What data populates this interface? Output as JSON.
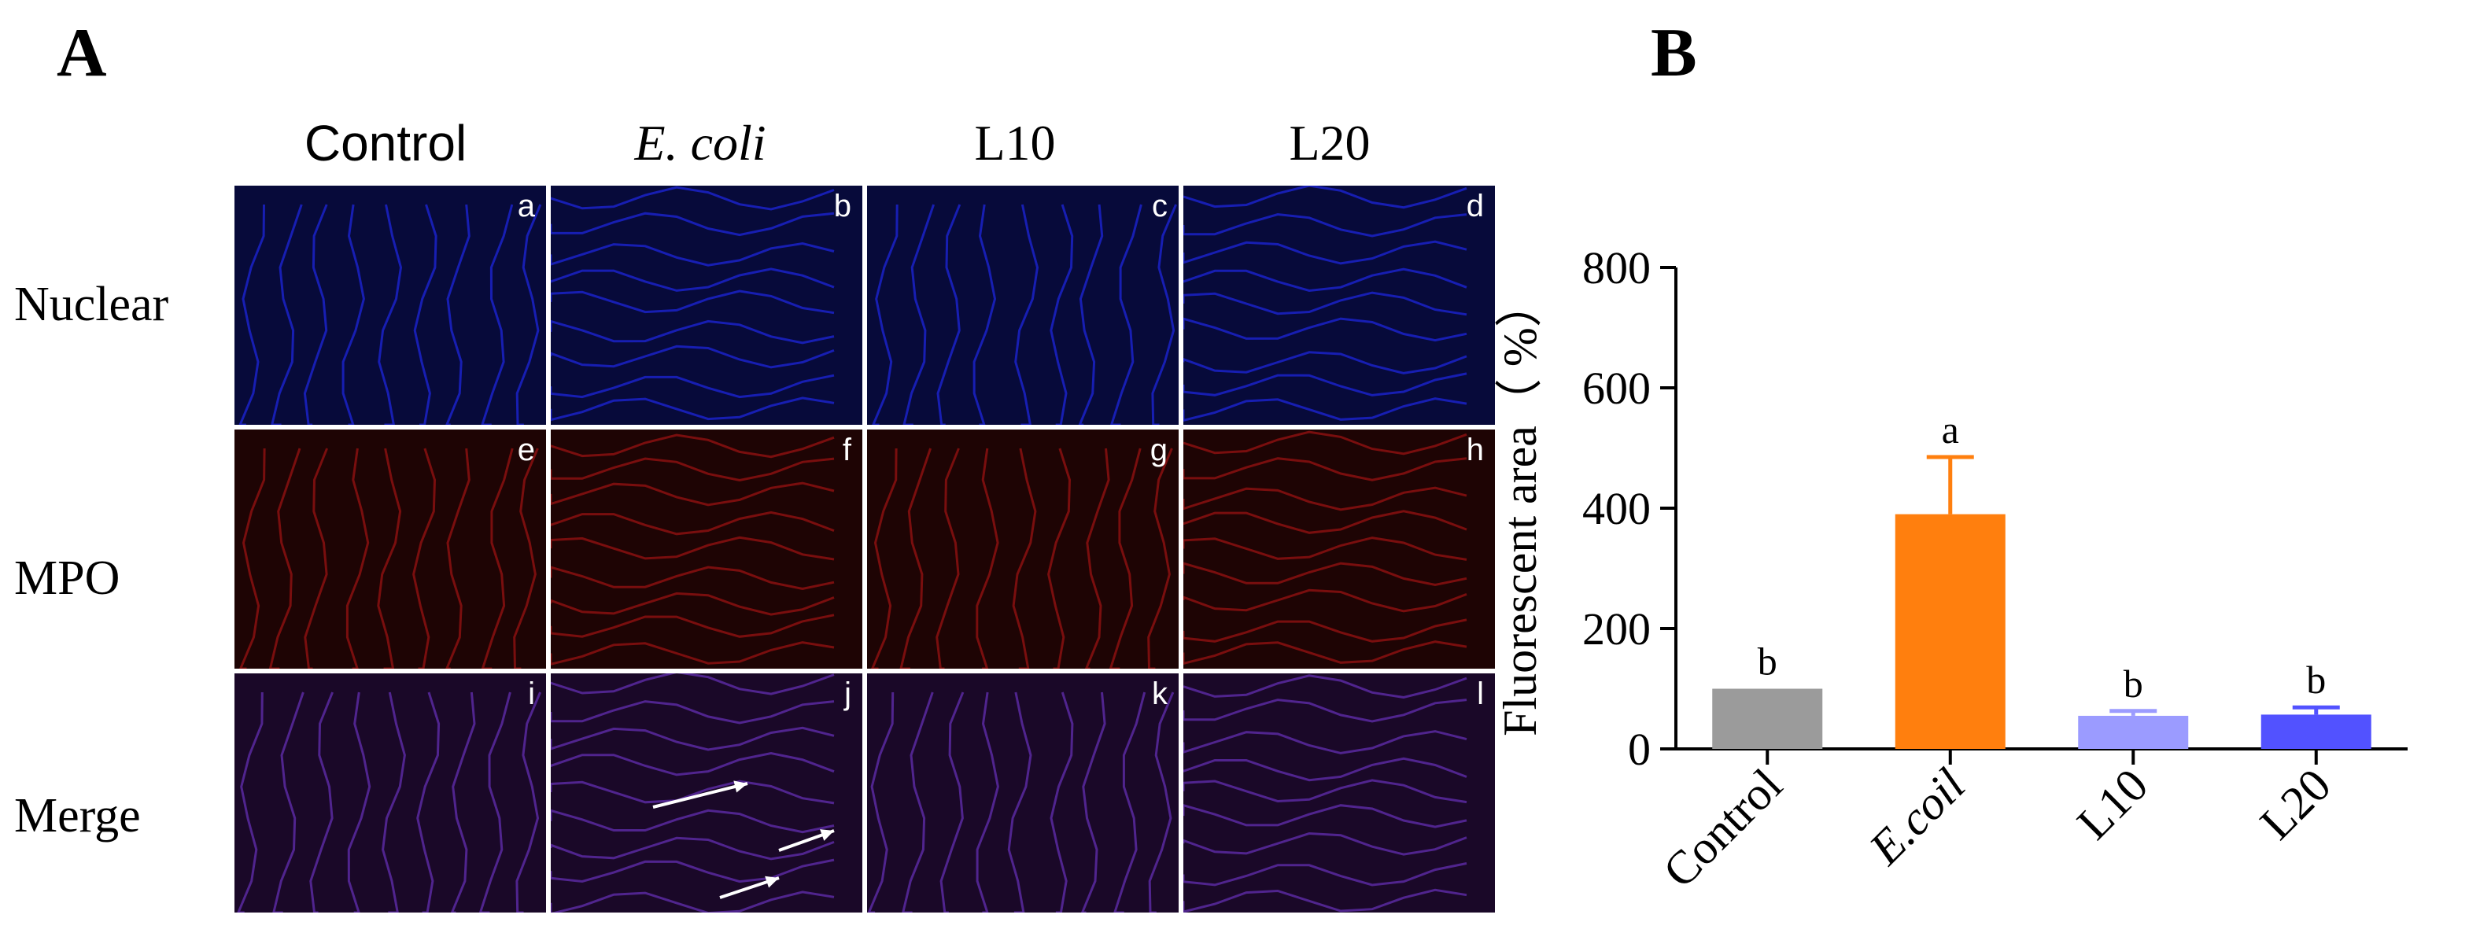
{
  "figure": {
    "panel_a_label": "A",
    "panel_b_label": "B",
    "columns": [
      {
        "label": "Control",
        "italic": false
      },
      {
        "label": "E. coli",
        "italic": true
      },
      {
        "label": "L10",
        "italic": false
      },
      {
        "label": "L20",
        "italic": false
      }
    ],
    "rows": [
      {
        "label": "Nuclear",
        "stain": "nuclear",
        "color": "#1a22c8"
      },
      {
        "label": "MPO",
        "stain": "mpo",
        "color": "#8a1010"
      },
      {
        "label": "Merge",
        "stain": "merge",
        "color": "#5a2aa0"
      }
    ],
    "tile_letters": [
      "a",
      "b",
      "c",
      "d",
      "e",
      "f",
      "g",
      "h",
      "i",
      "j",
      "k",
      "l"
    ]
  },
  "chart_data": {
    "type": "bar",
    "categories": [
      "Control",
      "E.coil",
      "L10",
      "L20"
    ],
    "category_italic": [
      false,
      true,
      false,
      false
    ],
    "values": [
      100,
      390,
      55,
      57
    ],
    "errors": [
      0,
      95,
      8,
      12
    ],
    "significance_labels": [
      "b",
      "a",
      "b",
      "b"
    ],
    "colors": [
      "#9b9b9b",
      "#ff7f0e",
      "#9b9bff",
      "#5252ff"
    ],
    "title": "",
    "xlabel": "",
    "ylabel": "Fluorescent area（ %）",
    "ylim": [
      0,
      800
    ],
    "yticks": [
      0,
      200,
      400,
      600,
      800
    ],
    "grid": false
  }
}
